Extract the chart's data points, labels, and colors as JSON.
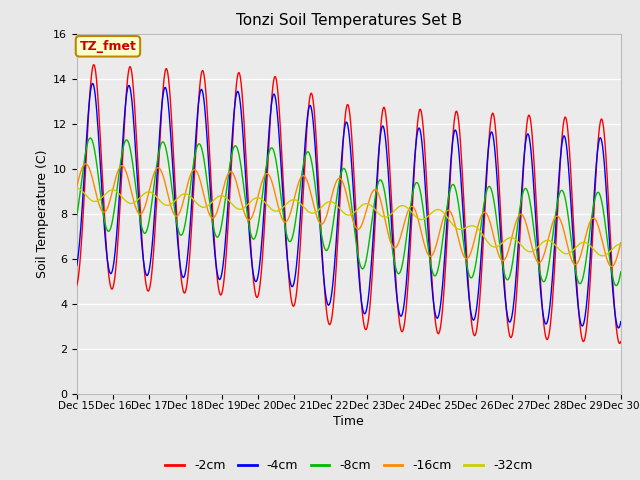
{
  "title": "Tonzi Soil Temperatures Set B",
  "xlabel": "Time",
  "ylabel": "Soil Temperature (C)",
  "ylim": [
    0,
    16
  ],
  "yticks": [
    0,
    2,
    4,
    6,
    8,
    10,
    12,
    14,
    16
  ],
  "legend_labels": [
    "-2cm",
    "-4cm",
    "-8cm",
    "-16cm",
    "-32cm"
  ],
  "legend_colors": [
    "#ff0000",
    "#0000ff",
    "#00bb00",
    "#ff8800",
    "#cccc00"
  ],
  "annotation_text": "TZ_fmet",
  "annotation_bg": "#ffffcc",
  "annotation_border": "#bb8800",
  "bg_color": "#e8e8e8",
  "plot_bg": "#ebebeb",
  "grid_color": "#ffffff",
  "n_days": 15,
  "points_per_day": 144
}
